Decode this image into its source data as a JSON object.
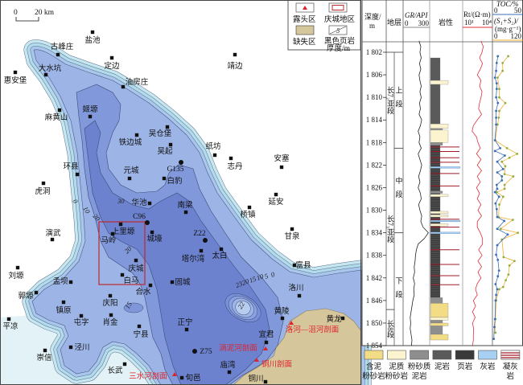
{
  "map": {
    "scale_bar": {
      "zero": "0",
      "label": "20 km"
    },
    "legend": {
      "outcrop": "露头区",
      "study_area": "庆城地区",
      "missing_area": "缺失区",
      "thickness_line1": "黑色页岩",
      "thickness_line2": "厚度/m",
      "thickness_symbol_value": "5"
    },
    "colors": {
      "outcrop": "#e0202a",
      "study_area": "#c0282e",
      "missing_area": "#d6c69c",
      "thickness_bands": [
        "#e3f2f7",
        "#c6e7f0",
        "#b2dbeb",
        "#9db5e6",
        "#8199db",
        "#6c82cf"
      ]
    },
    "towns": [
      "盐池",
      "古峰庄",
      "定边",
      "大水坑",
      "惠安堡",
      "油房庄",
      "麻黄山",
      "姬塬",
      "吴仓堡",
      "铁边城",
      "吴起",
      "纸坊",
      "志丹",
      "元城",
      "白豹",
      "安塞",
      "华池",
      "南梁",
      "桥镇",
      "上里塬",
      "马岭",
      "城壕",
      "塔尔湾",
      "太白",
      "环县",
      "虎洞",
      "延安",
      "演武",
      "甘泉",
      "富县",
      "固城",
      "洛川",
      "黄陵",
      "黄龙",
      "正宁",
      "宜君",
      "庙湾",
      "铜川",
      "旬邑",
      "刘塬",
      "孟坝",
      "郭塬",
      "镇原",
      "平凉",
      "庆阳",
      "屯字",
      "肖金",
      "宁县",
      "泾川",
      "崇信",
      "长武",
      "庆城",
      "白马",
      "合水",
      "靖边"
    ],
    "wells": [
      "G135",
      "C96",
      "Z22",
      "Z75"
    ],
    "sections": [
      "洛河—沮河剖面",
      "淌泥河剖面",
      "铜川剖面",
      "三水河剖面"
    ],
    "contour_labels": [
      "0",
      "10",
      "20",
      "30",
      "20",
      "15",
      "0",
      "5",
      "10",
      "15",
      "20",
      "23",
      "22"
    ]
  },
  "well_log": {
    "headers": {
      "depth": "深度/",
      "depth_unit": "m",
      "strata": "地层",
      "gr": "GR/API",
      "gr_min": "0",
      "gr_max": "300",
      "lithology": "岩性",
      "rt": "Rt/(Ω·m)",
      "rt_min": "10¹",
      "rt_max": "10⁴",
      "toc": "TOC/%",
      "toc_min": "0",
      "toc_max": "50",
      "s1s2": "(S₁+S₂)/",
      "s1s2_unit": "(mg·g⁻¹)",
      "s1s2_min": "0",
      "s1s2_max": "120"
    },
    "depth_ticks": [
      "1 802",
      "1 806",
      "1 810",
      "1 814",
      "1 818",
      "1 822",
      "1 826",
      "1 830",
      "1 834",
      "1 838",
      "1 842",
      "1 846",
      "1 850",
      "1 854"
    ],
    "depth_tick_values": [
      1802,
      1806,
      1810,
      1814,
      1818,
      1822,
      1826,
      1830,
      1834,
      1838,
      1842,
      1846,
      1850,
      1854
    ],
    "depth_range": [
      1800,
      1855
    ],
    "members": [
      {
        "label": "长7₂亚段",
        "top": 1802,
        "bottom": 1819
      },
      {
        "label": "长7₃亚段",
        "top": 1819,
        "bottom": 1847.6
      },
      {
        "label": "长8段",
        "top": 1847.6,
        "bottom": 1855
      }
    ],
    "sections": [
      {
        "label": "上段",
        "top": 1802,
        "bottom": 1819
      },
      {
        "label": "中段",
        "top": 1819,
        "bottom": 1834
      },
      {
        "label": "下段",
        "top": 1834,
        "bottom": 1855
      }
    ],
    "gr": [
      [
        1800,
        180
      ],
      [
        1801,
        200
      ],
      [
        1802,
        190
      ],
      [
        1803,
        205
      ],
      [
        1804,
        185
      ],
      [
        1805,
        200
      ],
      [
        1806,
        180
      ],
      [
        1807,
        190
      ],
      [
        1808,
        205
      ],
      [
        1809,
        190
      ],
      [
        1810,
        205
      ],
      [
        1811,
        185
      ],
      [
        1812,
        195
      ],
      [
        1813,
        180
      ],
      [
        1814,
        210
      ],
      [
        1815,
        195
      ],
      [
        1816,
        170
      ],
      [
        1817,
        190
      ],
      [
        1818,
        180
      ],
      [
        1819,
        205
      ],
      [
        1820,
        170
      ],
      [
        1821,
        190
      ],
      [
        1822,
        210
      ],
      [
        1823,
        195
      ],
      [
        1824,
        175
      ],
      [
        1825,
        190
      ],
      [
        1826,
        170
      ],
      [
        1827,
        195
      ],
      [
        1828,
        205
      ],
      [
        1829,
        175
      ],
      [
        1830,
        190
      ],
      [
        1831,
        210
      ],
      [
        1832,
        200
      ],
      [
        1833,
        225
      ],
      [
        1834,
        285
      ],
      [
        1835,
        240
      ],
      [
        1836,
        170
      ],
      [
        1837,
        150
      ],
      [
        1838,
        140
      ],
      [
        1839,
        135
      ],
      [
        1840,
        125
      ],
      [
        1841,
        130
      ],
      [
        1842,
        115
      ],
      [
        1843,
        130
      ],
      [
        1844,
        120
      ],
      [
        1845,
        125
      ],
      [
        1846,
        110
      ],
      [
        1847,
        100
      ],
      [
        1848,
        90
      ],
      [
        1849,
        80
      ],
      [
        1850,
        85
      ],
      [
        1851,
        80
      ],
      [
        1852,
        90
      ],
      [
        1853,
        100
      ],
      [
        1854,
        95
      ]
    ],
    "rt": [
      [
        1800,
        700
      ],
      [
        1801,
        1200
      ],
      [
        1802,
        900
      ],
      [
        1803,
        500
      ],
      [
        1804,
        1000
      ],
      [
        1805,
        600
      ],
      [
        1806,
        300
      ],
      [
        1807,
        700
      ],
      [
        1808,
        500
      ],
      [
        1809,
        900
      ],
      [
        1810,
        700
      ],
      [
        1811,
        500
      ],
      [
        1812,
        400
      ],
      [
        1813,
        800
      ],
      [
        1814,
        300
      ],
      [
        1815,
        120
      ],
      [
        1816,
        90
      ],
      [
        1817,
        250
      ],
      [
        1818,
        350
      ],
      [
        1819,
        600
      ],
      [
        1820,
        250
      ],
      [
        1821,
        700
      ],
      [
        1822,
        300
      ],
      [
        1823,
        800
      ],
      [
        1824,
        300
      ],
      [
        1825,
        600
      ],
      [
        1826,
        250
      ],
      [
        1827,
        500
      ],
      [
        1828,
        300
      ],
      [
        1829,
        700
      ],
      [
        1830,
        350
      ],
      [
        1831,
        800
      ],
      [
        1832,
        300
      ],
      [
        1833,
        300
      ],
      [
        1834,
        600
      ],
      [
        1835,
        1000
      ],
      [
        1836,
        1000
      ],
      [
        1837,
        400
      ],
      [
        1838,
        900
      ],
      [
        1839,
        350
      ],
      [
        1840,
        800
      ],
      [
        1841,
        350
      ],
      [
        1842,
        700
      ],
      [
        1843,
        300
      ],
      [
        1844,
        200
      ],
      [
        1845,
        300
      ],
      [
        1846,
        120
      ],
      [
        1847,
        200
      ],
      [
        1848,
        100
      ],
      [
        1849,
        180
      ],
      [
        1850,
        100
      ],
      [
        1851,
        130
      ],
      [
        1852,
        120
      ],
      [
        1853,
        120
      ],
      [
        1854,
        100
      ]
    ],
    "toc": [
      [
        1802.7,
        8
      ],
      [
        1803.9,
        6
      ],
      [
        1805.3,
        5
      ],
      [
        1806.5,
        3
      ],
      [
        1807.5,
        6
      ],
      [
        1808.5,
        6
      ],
      [
        1810,
        5
      ],
      [
        1811,
        8
      ],
      [
        1812.4,
        5
      ],
      [
        1813.6,
        5
      ],
      [
        1814.8,
        5
      ],
      [
        1817.6,
        3
      ],
      [
        1819,
        12
      ],
      [
        1819.5,
        3
      ],
      [
        1820.3,
        20
      ],
      [
        1821.4,
        7
      ],
      [
        1822.7,
        17
      ],
      [
        1823.3,
        7
      ],
      [
        1824,
        15
      ],
      [
        1824.7,
        15
      ],
      [
        1825.5,
        6
      ],
      [
        1826.2,
        7
      ],
      [
        1826.8,
        3
      ],
      [
        1827.6,
        10
      ],
      [
        1828.8,
        4
      ],
      [
        1829.8,
        6
      ],
      [
        1831.2,
        7
      ],
      [
        1831.9,
        19
      ],
      [
        1833.3,
        7
      ],
      [
        1834.3,
        25
      ],
      [
        1836.2,
        7
      ],
      [
        1837.9,
        5
      ],
      [
        1838.8,
        8
      ],
      [
        1840.7,
        10
      ],
      [
        1841.7,
        8
      ],
      [
        1843.1,
        4
      ],
      [
        1844,
        7
      ],
      [
        1845,
        5
      ],
      [
        1846,
        4
      ],
      [
        1849.3,
        3
      ],
      [
        1850.7,
        2
      ],
      [
        1852.8,
        1
      ]
    ],
    "s1s2": [
      [
        1802.7,
        62
      ],
      [
        1803.9,
        39
      ],
      [
        1805.3,
        39
      ],
      [
        1806.5,
        18
      ],
      [
        1808.5,
        25
      ],
      [
        1810,
        25
      ],
      [
        1811,
        50
      ],
      [
        1812.4,
        25
      ],
      [
        1813.6,
        23
      ],
      [
        1814.8,
        18
      ],
      [
        1817.6,
        8
      ],
      [
        1819,
        57
      ],
      [
        1820,
        99
      ],
      [
        1820.7,
        67
      ],
      [
        1821.4,
        36
      ],
      [
        1822.2,
        50
      ],
      [
        1823.6,
        47
      ],
      [
        1824,
        83
      ],
      [
        1825.5,
        47
      ],
      [
        1826.2,
        47
      ],
      [
        1826.8,
        15
      ],
      [
        1827.6,
        41
      ],
      [
        1829,
        25
      ],
      [
        1831.2,
        22
      ],
      [
        1831.7,
        81
      ],
      [
        1833.3,
        31
      ],
      [
        1834,
        102
      ],
      [
        1835.2,
        36
      ],
      [
        1838.3,
        43
      ],
      [
        1839,
        88
      ],
      [
        1839.8,
        67
      ],
      [
        1841.4,
        63
      ],
      [
        1842.4,
        52
      ],
      [
        1843.6,
        41
      ],
      [
        1844,
        25
      ],
      [
        1846,
        12
      ],
      [
        1849.3,
        9
      ],
      [
        1851.7,
        9
      ]
    ],
    "lithology": [
      {
        "top": 1803,
        "bottom": 1807,
        "type": "mudstone"
      },
      {
        "top": 1807,
        "bottom": 1807.7,
        "type": "argillaceous_siltstone"
      },
      {
        "top": 1807.7,
        "bottom": 1814.7,
        "type": "mudstone"
      },
      {
        "top": 1814.7,
        "bottom": 1815.5,
        "type": "argillaceous_siltstone"
      },
      {
        "top": 1815.5,
        "bottom": 1815.8,
        "type": "silty_mudstone"
      },
      {
        "top": 1815.8,
        "bottom": 1818,
        "type": "argillaceous_siltstone"
      },
      {
        "top": 1818,
        "bottom": 1818.5,
        "type": "silty_mudstone"
      },
      {
        "top": 1818.5,
        "bottom": 1845.5,
        "type": "shale"
      },
      {
        "top": 1826.6,
        "bottom": 1827,
        "type": "silty_mudstone"
      },
      {
        "top": 1827.2,
        "bottom": 1827.6,
        "type": "argillaceous_siltstone"
      },
      {
        "top": 1830.2,
        "bottom": 1830.6,
        "type": "argillaceous_siltstone"
      },
      {
        "top": 1830.8,
        "bottom": 1831.2,
        "type": "argillaceous_siltstone"
      },
      {
        "top": 1832.4,
        "bottom": 1832.8,
        "type": "argillaceous_siltstone"
      },
      {
        "top": 1845.5,
        "bottom": 1846.5,
        "type": "silty_mudstone"
      },
      {
        "top": 1846.5,
        "bottom": 1849,
        "type": "muddy_siltstone"
      },
      {
        "top": 1849,
        "bottom": 1849.5,
        "type": "argillaceous_siltstone"
      },
      {
        "top": 1849.5,
        "bottom": 1850,
        "type": "silty_mudstone"
      },
      {
        "top": 1850,
        "bottom": 1850.5,
        "type": "muddy_siltstone"
      },
      {
        "top": 1850.5,
        "bottom": 1852,
        "type": "silty_mudstone"
      },
      {
        "top": 1852,
        "bottom": 1853,
        "type": "muddy_siltstone"
      }
    ],
    "tuff_beds": [
      1818.8,
      1819.6,
      1820.7,
      1821.5,
      1823.5,
      1825.7,
      1831.6,
      1833,
      1837,
      1839.6,
      1841.6,
      1843.2
    ],
    "limestone_beds": [
      1822.4,
      1831.9,
      1834
    ],
    "curve_colors": {
      "gr": "#222222",
      "rt": "#e0303a",
      "toc": "#3b6db5",
      "s1s2": "#f0b030"
    },
    "lithology_legend": [
      {
        "type": "muddy_siltstone",
        "line1": "含泥",
        "line2": "粉砂岩",
        "color": "#f3dc86"
      },
      {
        "type": "argillaceous_siltstone",
        "line1": "泥质",
        "line2": "粉砂岩",
        "color": "#fbf4cf"
      },
      {
        "type": "silty_mudstone",
        "line1": "粉砂质",
        "line2": "泥岩",
        "color": "#8e8e8e"
      },
      {
        "type": "mudstone",
        "line1": "泥岩",
        "line2": "",
        "color": "#5a5a5a"
      },
      {
        "type": "shale",
        "line1": "页岩",
        "line2": "",
        "color": "#3a3a3a"
      },
      {
        "type": "limestone",
        "line1": "灰岩",
        "line2": "",
        "color": "#a8d0f2"
      },
      {
        "type": "tuff",
        "line1": "凝灰",
        "line2": "岩",
        "color": "#a01a2a"
      }
    ]
  }
}
